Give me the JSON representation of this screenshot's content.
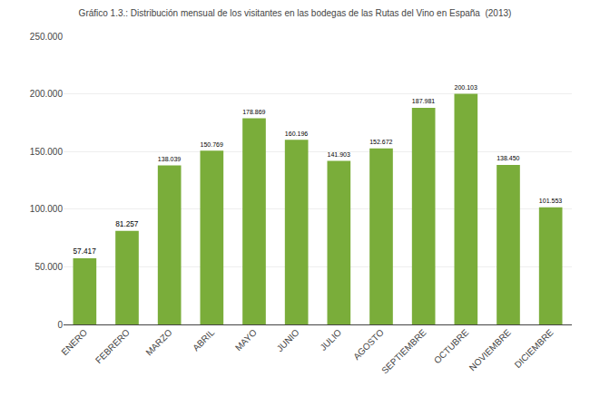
{
  "chart_data": {
    "type": "bar",
    "title": "Gráfico 1.3.: Distribución mensual de los visitantes en las bodegas de las Rutas del Vino en España  (2013)",
    "categories": [
      "ENERO",
      "FEBRERO",
      "MARZO",
      "ABRIL",
      "MAYO",
      "JUNIO",
      "JULIO",
      "AGOSTO",
      "SEPTIEMBRE",
      "OCTUBRE",
      "NOVIEMBRE",
      "DICIEMBRE"
    ],
    "values": [
      57417,
      81257,
      138039,
      150769,
      178869,
      160196,
      141903,
      152672,
      187981,
      200103,
      138450,
      101553
    ],
    "value_labels": [
      "57.417",
      "81.257",
      "138.039",
      "150.769",
      "178.869",
      "160.196",
      "141.903",
      "152.672",
      "187.981",
      "200.103",
      "138.450",
      "101.553"
    ],
    "data_labels": true,
    "color": "#7aad3a",
    "ylim": [
      0,
      250000
    ],
    "yticks": [
      0,
      {
        "value": 50000,
        "label": "50.000"
      },
      {
        "value": 100000,
        "label": "100.000"
      },
      {
        "value": 150000,
        "label": "150.000"
      },
      {
        "value": 200000,
        "label": "200.000"
      },
      {
        "value": 250000,
        "label": "250.000"
      }
    ],
    "grid": true
  }
}
